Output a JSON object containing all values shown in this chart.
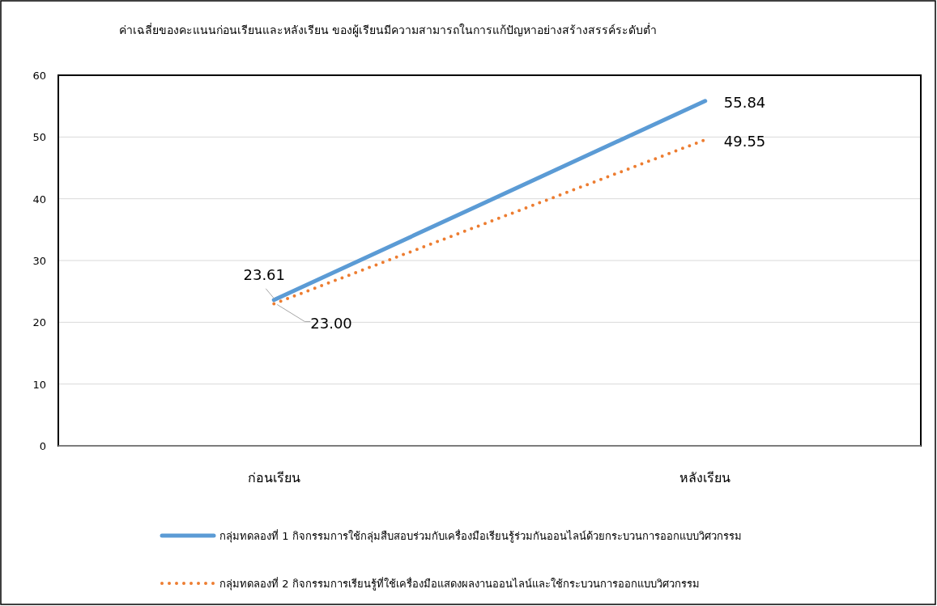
{
  "chart_data": {
    "type": "line",
    "title": "ค่าเฉลี่ยของคะแนนก่อนเรียนและหลังเรียน ของผู้เรียนมีความสามารถในการแก้ปัญหาอย่างสร้างสรรค์ระดับต่ำ",
    "categories": [
      "ก่อนเรียน",
      "หลังเรียน"
    ],
    "series": [
      {
        "name": "กลุ่มทดลองที่ 1 กิจกรรมการใช้กลุ่มสืบสอบร่วมกับเครื่องมือเรียนรู้ร่วมกันออนไลน์ด้วยกระบวนการออกแบบวิศวกรรม",
        "color": "#5b9bd5",
        "values": [
          23.61,
          55.84
        ],
        "value_labels": [
          "23.61",
          "55.84"
        ],
        "line_style": "solid"
      },
      {
        "name": "กลุ่มทดลองที่ 2 กิจกรรมการเรียนรู้ที่ใช้เครื่องมือแสดงผลงานออนไลน์และใช้กระบวนการออกแบบวิศวกรรม",
        "color": "#ed7d31",
        "values": [
          23.0,
          49.55
        ],
        "value_labels": [
          "23.00",
          "49.55"
        ],
        "line_style": "dotted"
      }
    ],
    "ylim": [
      0,
      60
    ],
    "yticks": [
      0,
      10,
      20,
      30,
      40,
      50,
      60
    ],
    "grid": "y",
    "legend": "bottom"
  }
}
